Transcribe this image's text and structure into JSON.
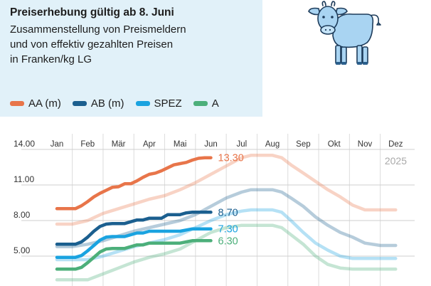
{
  "header": {
    "title": "Preiserhebung gültig ab 8. Juni",
    "subtitle_lines": [
      "Zusammenstellung von Preismeldern",
      "und von effektiv gezahlten Preisen",
      "in Franken/kg LG"
    ]
  },
  "colors": {
    "AA (m)": "#e8754a",
    "AB (m)": "#1b5f8f",
    "SPEZ": "#1aa3e0",
    "A": "#4caf7a",
    "header_bg": "#e1f1f9",
    "year_label": "#a9a9a9"
  },
  "chart_data": {
    "type": "line",
    "x": [
      "Jan",
      "Feb",
      "Mär",
      "Apr",
      "Mai",
      "Jun",
      "Jul",
      "Aug",
      "Sep",
      "Okt",
      "Nov",
      "Dez"
    ],
    "ylim": [
      4.0,
      14.5
    ],
    "yticks": [
      "14.00",
      "11.00",
      "8.00",
      "5.00"
    ],
    "ytick_values": [
      14,
      11,
      8,
      5
    ],
    "year_label": "2025",
    "grid": true,
    "legend_position": "top-left",
    "series": [
      {
        "name": "AA (m)",
        "current": {
          "x": [
            1,
            1.2,
            1.4,
            1.6,
            1.8,
            2,
            2.2,
            2.4,
            2.6,
            2.8,
            3,
            3.2,
            3.4,
            3.6,
            3.8,
            4,
            4.2,
            4.4,
            4.6,
            4.8,
            5,
            5.2,
            5.4,
            5.6,
            5.8,
            6
          ],
          "y": [
            9.0,
            9.0,
            9.0,
            9.0,
            9.25,
            9.6,
            10.0,
            10.3,
            10.55,
            10.8,
            10.85,
            11.1,
            11.1,
            11.35,
            11.65,
            11.9,
            12.0,
            12.2,
            12.45,
            12.7,
            12.8,
            12.9,
            13.1,
            13.25,
            13.3,
            13.3
          ]
        },
        "last_value": "13.30",
        "previous": {
          "x": [
            1,
            1.5,
            2,
            2.5,
            3,
            3.5,
            4,
            4.5,
            5,
            5.5,
            6,
            6.5,
            7,
            7.3,
            7.6,
            8,
            8.3,
            8.6,
            9,
            9.4,
            9.8,
            10.2,
            10.6,
            11,
            11.5,
            12
          ],
          "y": [
            7.7,
            7.7,
            8.0,
            8.6,
            9.0,
            9.4,
            9.8,
            10.1,
            10.6,
            11.2,
            11.9,
            12.6,
            13.3,
            13.5,
            13.5,
            13.5,
            13.3,
            12.7,
            12.0,
            11.3,
            10.6,
            10.0,
            9.3,
            8.9,
            8.9,
            8.9
          ]
        }
      },
      {
        "name": "AB (m)",
        "current": {
          "x": [
            1,
            1.2,
            1.4,
            1.6,
            1.8,
            2,
            2.2,
            2.4,
            2.6,
            2.8,
            3,
            3.2,
            3.4,
            3.6,
            3.8,
            4,
            4.2,
            4.4,
            4.6,
            4.8,
            5,
            5.2,
            5.4,
            5.6,
            5.8,
            6
          ],
          "y": [
            6.0,
            6.0,
            6.0,
            6.0,
            6.2,
            6.6,
            7.1,
            7.5,
            7.7,
            7.75,
            7.75,
            7.75,
            7.9,
            8.05,
            8.05,
            8.2,
            8.2,
            8.2,
            8.5,
            8.5,
            8.5,
            8.65,
            8.7,
            8.7,
            8.7,
            8.7
          ]
        },
        "last_value": "8.70",
        "previous": {
          "x": [
            1,
            1.5,
            2,
            2.5,
            3,
            3.5,
            4,
            4.5,
            5,
            5.5,
            6,
            6.5,
            7,
            7.3,
            7.6,
            8,
            8.3,
            8.6,
            9,
            9.4,
            9.8,
            10.2,
            10.6,
            11,
            11.5,
            12
          ],
          "y": [
            5.8,
            5.8,
            6.0,
            6.3,
            6.7,
            7.1,
            7.4,
            7.7,
            8.0,
            8.5,
            9.2,
            9.9,
            10.4,
            10.6,
            10.6,
            10.6,
            10.4,
            9.9,
            9.2,
            8.3,
            7.6,
            7.0,
            6.6,
            6.1,
            5.9,
            5.9
          ]
        }
      },
      {
        "name": "SPEZ",
        "current": {
          "x": [
            1,
            1.2,
            1.4,
            1.6,
            1.8,
            2,
            2.2,
            2.4,
            2.6,
            2.8,
            3,
            3.2,
            3.4,
            3.6,
            3.8,
            4,
            4.2,
            4.4,
            4.6,
            4.8,
            5,
            5.2,
            5.4,
            5.6,
            5.8,
            6
          ],
          "y": [
            4.9,
            4.9,
            4.9,
            4.9,
            5.05,
            5.45,
            5.9,
            6.35,
            6.6,
            6.65,
            6.65,
            6.65,
            6.8,
            6.95,
            6.95,
            7.1,
            7.1,
            7.1,
            7.1,
            7.1,
            7.1,
            7.2,
            7.3,
            7.3,
            7.3,
            7.3
          ]
        },
        "last_value": "7.30",
        "previous": {
          "x": [
            1,
            1.5,
            2,
            2.5,
            3,
            3.5,
            4,
            4.5,
            5,
            5.5,
            6,
            6.5,
            7,
            7.3,
            7.6,
            8,
            8.3,
            8.6,
            9,
            9.4,
            9.8,
            10.2,
            10.6,
            11,
            11.5,
            12
          ],
          "y": [
            4.7,
            4.7,
            4.7,
            5.0,
            5.4,
            5.8,
            6.1,
            6.4,
            6.8,
            7.4,
            8.0,
            8.5,
            8.8,
            8.9,
            8.9,
            8.9,
            8.7,
            8.0,
            7.0,
            6.1,
            5.5,
            5.0,
            4.8,
            4.8,
            4.8,
            4.8
          ]
        }
      },
      {
        "name": "A",
        "current": {
          "x": [
            1,
            1.2,
            1.4,
            1.6,
            1.8,
            2,
            2.2,
            2.4,
            2.6,
            2.8,
            3,
            3.2,
            3.4,
            3.6,
            3.8,
            4,
            4.2,
            4.4,
            4.6,
            4.8,
            5,
            5.2,
            5.4,
            5.6,
            5.8,
            6
          ],
          "y": [
            3.9,
            3.9,
            3.9,
            3.9,
            4.05,
            4.45,
            4.9,
            5.35,
            5.6,
            5.65,
            5.65,
            5.65,
            5.8,
            5.95,
            5.95,
            6.1,
            6.1,
            6.1,
            6.1,
            6.1,
            6.1,
            6.2,
            6.3,
            6.3,
            6.3,
            6.3
          ]
        },
        "last_value": "6.30",
        "previous": {
          "x": [
            1,
            1.5,
            2,
            2.5,
            3,
            3.5,
            4,
            4.5,
            5,
            5.5,
            6,
            6.5,
            7,
            7.3,
            7.6,
            8,
            8.3,
            8.6,
            9,
            9.4,
            9.8,
            10.2,
            10.6,
            11,
            11.5,
            12
          ],
          "y": [
            3.0,
            3.0,
            3.0,
            3.5,
            4.0,
            4.5,
            4.9,
            5.2,
            5.6,
            6.3,
            7.0,
            7.4,
            7.6,
            7.6,
            7.6,
            7.6,
            7.4,
            6.8,
            6.0,
            5.0,
            4.3,
            4.0,
            3.9,
            3.9,
            3.9,
            3.9
          ]
        }
      }
    ]
  }
}
